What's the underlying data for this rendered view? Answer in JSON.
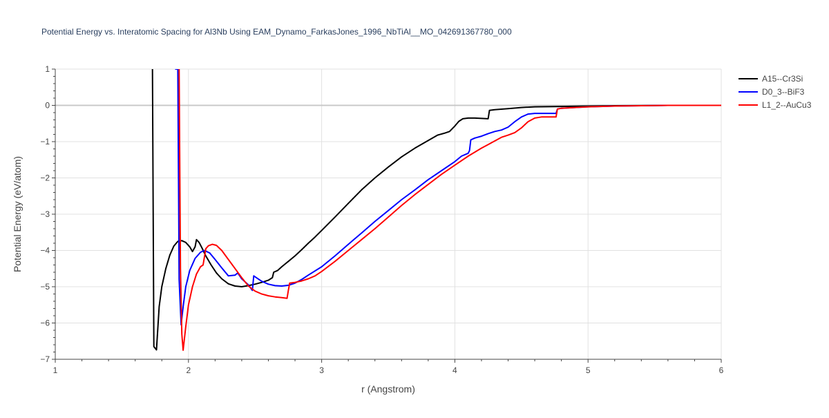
{
  "chart_data": {
    "type": "line",
    "title": "Potential Energy vs. Interatomic Spacing for Al3Nb Using EAM_Dynamo_FarkasJones_1996_NbTiAl__MO_042691367780_000",
    "xlabel": "r (Angstrom)",
    "ylabel": "Potential Energy (eV/atom)",
    "xlim": [
      1,
      6
    ],
    "ylim": [
      -7,
      1
    ],
    "x_ticks": [
      "1",
      "2",
      "3",
      "4",
      "5",
      "6"
    ],
    "y_ticks": [
      "1",
      "0",
      "−1",
      "−2",
      "−3",
      "−4",
      "−5",
      "−6",
      "−7"
    ],
    "grid": true,
    "legend_position": "top-right",
    "series": [
      {
        "name": "A15--Cr3Si",
        "color": "#000000",
        "x": [
          1.73,
          1.74,
          1.76,
          1.78,
          1.8,
          1.83,
          1.86,
          1.89,
          1.92,
          1.95,
          1.98,
          2.01,
          2.03,
          2.05,
          2.06,
          2.08,
          2.1,
          2.13,
          2.17,
          2.21,
          2.25,
          2.3,
          2.35,
          2.4,
          2.45,
          2.5,
          2.55,
          2.6,
          2.63,
          2.64,
          2.67,
          2.7,
          2.75,
          2.8,
          2.85,
          2.9,
          2.95,
          3.0,
          3.1,
          3.2,
          3.3,
          3.4,
          3.5,
          3.6,
          3.7,
          3.8,
          3.87,
          3.92,
          3.96,
          4.0,
          4.03,
          4.06,
          4.1,
          4.15,
          4.2,
          4.25,
          4.26,
          4.3,
          4.4,
          4.5,
          4.6,
          4.8,
          5.0,
          5.2,
          5.4,
          5.6,
          6.0
        ],
        "y": [
          1.0,
          -6.65,
          -6.74,
          -5.55,
          -5.0,
          -4.5,
          -4.13,
          -3.88,
          -3.75,
          -3.73,
          -3.78,
          -3.9,
          -4.03,
          -3.9,
          -3.7,
          -3.78,
          -3.92,
          -4.15,
          -4.4,
          -4.62,
          -4.78,
          -4.92,
          -4.98,
          -5.0,
          -4.97,
          -4.93,
          -4.88,
          -4.82,
          -4.75,
          -4.6,
          -4.55,
          -4.45,
          -4.3,
          -4.15,
          -3.98,
          -3.8,
          -3.63,
          -3.45,
          -3.08,
          -2.7,
          -2.33,
          -2.0,
          -1.7,
          -1.42,
          -1.18,
          -0.97,
          -0.82,
          -0.77,
          -0.72,
          -0.57,
          -0.44,
          -0.37,
          -0.35,
          -0.35,
          -0.36,
          -0.37,
          -0.14,
          -0.12,
          -0.09,
          -0.06,
          -0.04,
          -0.03,
          -0.02,
          -0.01,
          -0.005,
          0.0,
          0.0
        ]
      },
      {
        "name": "D0_3--BiF3",
        "color": "#0000ff",
        "x": [
          1.9,
          1.92,
          1.93,
          1.945,
          1.96,
          1.98,
          2.01,
          2.05,
          2.09,
          2.12,
          2.16,
          2.2,
          2.25,
          2.3,
          2.35,
          2.37,
          2.4,
          2.45,
          2.48,
          2.49,
          2.51,
          2.55,
          2.6,
          2.65,
          2.7,
          2.75,
          2.8,
          2.85,
          2.9,
          3.0,
          3.1,
          3.2,
          3.3,
          3.4,
          3.5,
          3.6,
          3.7,
          3.8,
          3.9,
          4.0,
          4.05,
          4.1,
          4.11,
          4.12,
          4.15,
          4.2,
          4.25,
          4.3,
          4.35,
          4.4,
          4.45,
          4.5,
          4.55,
          4.6,
          4.65,
          4.7,
          4.75,
          4.76,
          4.77,
          4.8,
          4.9,
          5.0,
          5.2,
          5.4,
          5.6,
          6.0
        ],
        "y": [
          1.0,
          1.0,
          -4.8,
          -6.05,
          -5.55,
          -5.0,
          -4.55,
          -4.22,
          -4.05,
          -4.0,
          -4.07,
          -4.25,
          -4.48,
          -4.7,
          -4.68,
          -4.62,
          -4.78,
          -4.95,
          -5.1,
          -4.7,
          -4.75,
          -4.85,
          -4.93,
          -4.97,
          -4.98,
          -4.96,
          -4.9,
          -4.8,
          -4.68,
          -4.45,
          -4.15,
          -3.83,
          -3.52,
          -3.2,
          -2.9,
          -2.6,
          -2.33,
          -2.05,
          -1.8,
          -1.55,
          -1.4,
          -1.32,
          -1.25,
          -0.95,
          -0.9,
          -0.85,
          -0.78,
          -0.72,
          -0.68,
          -0.6,
          -0.45,
          -0.32,
          -0.24,
          -0.22,
          -0.22,
          -0.22,
          -0.22,
          -0.22,
          -0.1,
          -0.08,
          -0.06,
          -0.04,
          -0.02,
          -0.01,
          0.0,
          0.0
        ]
      },
      {
        "name": "L1_2--AuCu3",
        "color": "#ff0000",
        "x": [
          1.93,
          1.94,
          1.95,
          1.96,
          1.98,
          2.0,
          2.03,
          2.06,
          2.09,
          2.11,
          2.13,
          2.15,
          2.18,
          2.21,
          2.25,
          2.3,
          2.35,
          2.4,
          2.45,
          2.5,
          2.55,
          2.6,
          2.65,
          2.7,
          2.74,
          2.75,
          2.76,
          2.8,
          2.85,
          2.9,
          2.95,
          3.0,
          3.1,
          3.2,
          3.3,
          3.4,
          3.5,
          3.6,
          3.7,
          3.8,
          3.9,
          4.0,
          4.1,
          4.2,
          4.25,
          4.3,
          4.35,
          4.4,
          4.45,
          4.5,
          4.55,
          4.6,
          4.65,
          4.7,
          4.75,
          4.76,
          4.77,
          4.8,
          4.9,
          5.0,
          5.2,
          5.4,
          5.6,
          6.0
        ],
        "y": [
          1.0,
          -4.5,
          -6.3,
          -6.75,
          -6.1,
          -5.5,
          -5.0,
          -4.65,
          -4.45,
          -4.4,
          -3.95,
          -3.87,
          -3.83,
          -3.86,
          -4.0,
          -4.25,
          -4.5,
          -4.75,
          -4.98,
          -5.12,
          -5.2,
          -5.25,
          -5.28,
          -5.3,
          -5.32,
          -5.1,
          -4.9,
          -4.88,
          -4.84,
          -4.78,
          -4.7,
          -4.58,
          -4.3,
          -4.0,
          -3.7,
          -3.4,
          -3.08,
          -2.76,
          -2.46,
          -2.18,
          -1.9,
          -1.65,
          -1.4,
          -1.18,
          -1.08,
          -0.98,
          -0.88,
          -0.82,
          -0.75,
          -0.62,
          -0.45,
          -0.35,
          -0.32,
          -0.32,
          -0.32,
          -0.32,
          -0.1,
          -0.08,
          -0.06,
          -0.04,
          -0.02,
          -0.01,
          0.0,
          0.0
        ]
      }
    ]
  }
}
